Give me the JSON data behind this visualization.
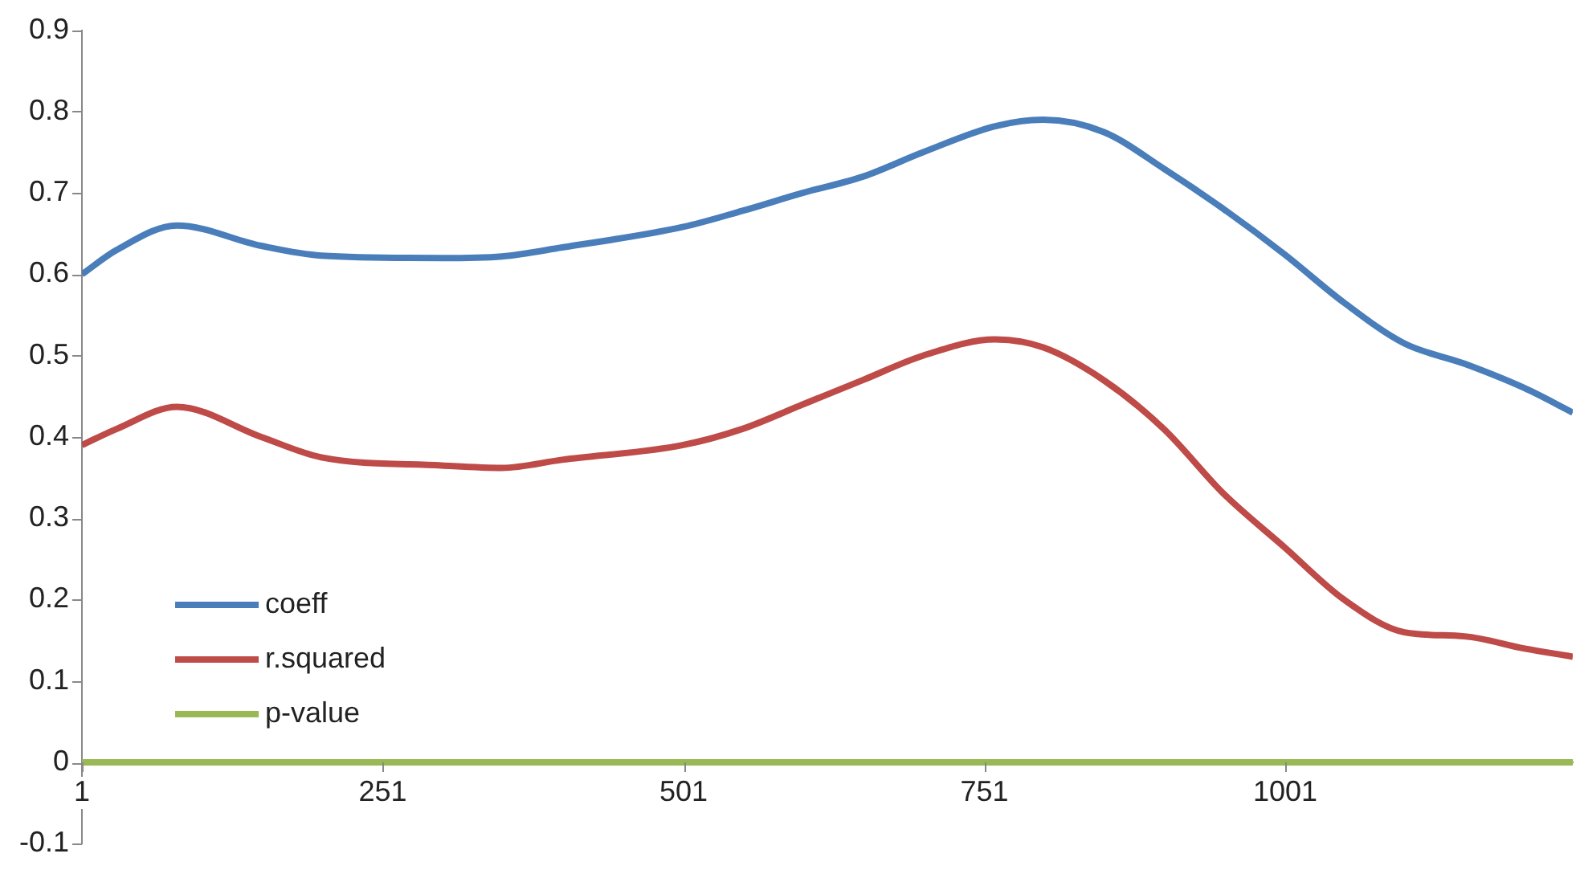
{
  "chart_data": {
    "type": "line",
    "x": [
      1,
      30,
      80,
      150,
      200,
      300,
      350,
      400,
      500,
      550,
      600,
      650,
      700,
      760,
      800,
      850,
      900,
      950,
      1000,
      1050,
      1100,
      1150,
      1200,
      1240
    ],
    "series": [
      {
        "name": "coeff",
        "color": "#4a7ebb",
        "values": [
          0.6,
          0.63,
          0.66,
          0.635,
          0.623,
          0.62,
          0.622,
          0.633,
          0.658,
          0.678,
          0.7,
          0.72,
          0.75,
          0.782,
          0.79,
          0.775,
          0.73,
          0.68,
          0.625,
          0.565,
          0.515,
          0.49,
          0.46,
          0.43
        ]
      },
      {
        "name": "r.squared",
        "color": "#be4b48",
        "values": [
          0.39,
          0.41,
          0.437,
          0.4,
          0.375,
          0.365,
          0.362,
          0.372,
          0.39,
          0.41,
          0.44,
          0.47,
          0.5,
          0.52,
          0.51,
          0.47,
          0.41,
          0.33,
          0.265,
          0.2,
          0.16,
          0.155,
          0.14,
          0.13
        ]
      },
      {
        "name": "p-value",
        "color": "#98b954",
        "values": [
          0,
          0,
          0,
          0,
          0,
          0,
          0,
          0,
          0,
          0,
          0,
          0,
          0,
          0,
          0,
          0,
          0,
          0,
          0,
          0,
          0,
          0,
          0,
          0
        ]
      }
    ],
    "xlim": [
      1,
      1240
    ],
    "xticks": [
      1,
      251,
      501,
      751,
      1001
    ],
    "ylim": [
      -0.1,
      0.9
    ],
    "yticks": [
      -0.1,
      0,
      0.1,
      0.2,
      0.3,
      0.4,
      0.5,
      0.6,
      0.7,
      0.8,
      0.9
    ],
    "grid": false,
    "legend": "bottom left",
    "marker": "none",
    "line_style": "solid"
  }
}
